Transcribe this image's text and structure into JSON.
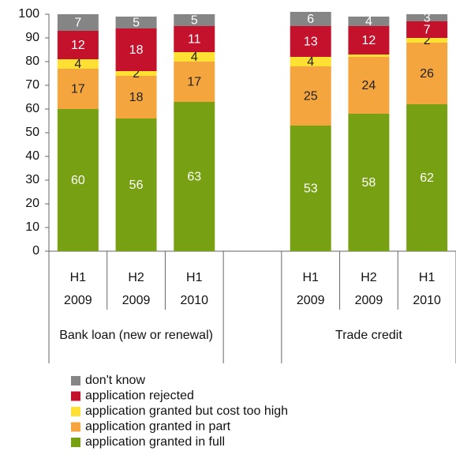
{
  "chart_data": {
    "type": "bar",
    "stacked": true,
    "categories": [
      [
        "H1",
        "2009"
      ],
      [
        "H2",
        "2009"
      ],
      [
        "H1",
        "2010"
      ],
      null,
      [
        "H1",
        "2009"
      ],
      [
        "H2",
        "2009"
      ],
      [
        "H1",
        "2010"
      ]
    ],
    "groups": [
      "Bank loan (new or renewal)",
      "Trade credit"
    ],
    "ylim": [
      0,
      100
    ],
    "yticks": [
      0,
      10,
      20,
      30,
      40,
      50,
      60,
      70,
      80,
      90,
      100
    ],
    "grid": false,
    "series": [
      {
        "name": "application granted in full",
        "color": "#77a012",
        "label_color": "#ffffff",
        "values": [
          60,
          56,
          63,
          null,
          53,
          58,
          62
        ]
      },
      {
        "name": "application granted in part",
        "color": "#f4a53e",
        "label_color": "#222222",
        "values": [
          17,
          18,
          17,
          null,
          25,
          24,
          26
        ]
      },
      {
        "name": "application granted but cost too high",
        "color": "#ffe033",
        "label_color": "#222222",
        "values": [
          4,
          2,
          4,
          null,
          4,
          1,
          2
        ],
        "value_labels": [
          "4",
          "2",
          "4",
          null,
          "4",
          null,
          "2"
        ]
      },
      {
        "name": "application rejected",
        "color": "#c4122d",
        "label_color": "#ffffff",
        "values": [
          12,
          18,
          11,
          null,
          13,
          12,
          7
        ]
      },
      {
        "name": "don't know",
        "color": "#858585",
        "label_color": "#ffffff",
        "values": [
          7,
          5,
          5,
          null,
          6,
          4,
          3
        ]
      }
    ]
  }
}
